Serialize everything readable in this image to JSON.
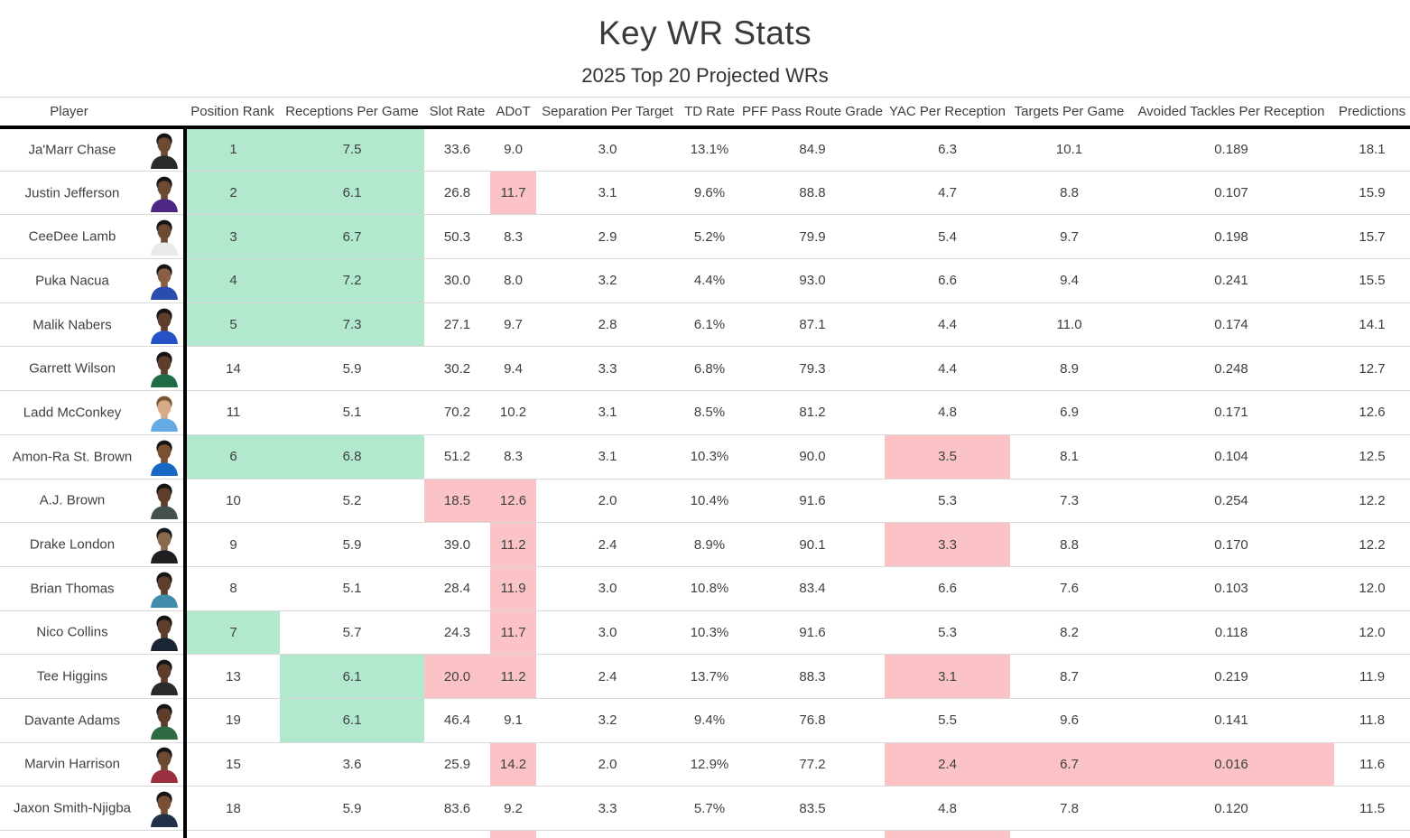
{
  "chart_data": {
    "type": "table",
    "title": "Key WR Stats",
    "subtitle": "2025 Top 20 Projected WRs",
    "highlight_colors": {
      "green": "#b1e8ce",
      "red": "#fbc3c6"
    },
    "legend_note": "green = strength highlight, red = weakness highlight",
    "columns": [
      {
        "key": "player",
        "label": "Player"
      },
      {
        "key": "rank",
        "label": "Position Rank"
      },
      {
        "key": "rec",
        "label": "Receptions Per Game"
      },
      {
        "key": "slot",
        "label": "Slot Rate"
      },
      {
        "key": "adot",
        "label": "ADoT"
      },
      {
        "key": "sep",
        "label": "Separation Per Target"
      },
      {
        "key": "td",
        "label": "TD Rate"
      },
      {
        "key": "pff",
        "label": "PFF Pass Route Grade"
      },
      {
        "key": "yac",
        "label": "YAC Per Reception"
      },
      {
        "key": "tgt",
        "label": "Targets Per Game"
      },
      {
        "key": "avt",
        "label": "Avoided Tackles Per Reception"
      },
      {
        "key": "pred",
        "label": "Predictions"
      }
    ],
    "rows": [
      {
        "player": "Ja'Marr Chase",
        "avatar": {
          "skin": "#6f4a33",
          "hair": "#151515",
          "jersey": "#2a2a2a"
        },
        "values": {
          "rank": "1",
          "rec": "7.5",
          "slot": "33.6",
          "adot": "9.0",
          "sep": "3.0",
          "td": "13.1%",
          "pff": "84.9",
          "yac": "6.3",
          "tgt": "10.1",
          "avt": "0.189",
          "pred": "18.1"
        },
        "highlights": {
          "rank": "green",
          "rec": "green"
        }
      },
      {
        "player": "Justin Jefferson",
        "avatar": {
          "skin": "#6f4a33",
          "hair": "#151515",
          "jersey": "#4f2683"
        },
        "values": {
          "rank": "2",
          "rec": "6.1",
          "slot": "26.8",
          "adot": "11.7",
          "sep": "3.1",
          "td": "9.6%",
          "pff": "88.8",
          "yac": "4.7",
          "tgt": "8.8",
          "avt": "0.107",
          "pred": "15.9"
        },
        "highlights": {
          "rank": "green",
          "rec": "green",
          "adot": "red"
        }
      },
      {
        "player": "CeeDee Lamb",
        "avatar": {
          "skin": "#6f4a33",
          "hair": "#151515",
          "jersey": "#e9e9e9"
        },
        "values": {
          "rank": "3",
          "rec": "6.7",
          "slot": "50.3",
          "adot": "8.3",
          "sep": "2.9",
          "td": "5.2%",
          "pff": "79.9",
          "yac": "5.4",
          "tgt": "9.7",
          "avt": "0.198",
          "pred": "15.7"
        },
        "highlights": {
          "rank": "green",
          "rec": "green"
        }
      },
      {
        "player": "Puka Nacua",
        "avatar": {
          "skin": "#8a5f41",
          "hair": "#151515",
          "jersey": "#2a4cad"
        },
        "values": {
          "rank": "4",
          "rec": "7.2",
          "slot": "30.0",
          "adot": "8.0",
          "sep": "3.2",
          "td": "4.4%",
          "pff": "93.0",
          "yac": "6.6",
          "tgt": "9.4",
          "avt": "0.241",
          "pred": "15.5"
        },
        "highlights": {
          "rank": "green",
          "rec": "green"
        }
      },
      {
        "player": "Malik Nabers",
        "avatar": {
          "skin": "#5e3d2a",
          "hair": "#151515",
          "jersey": "#2553c7"
        },
        "values": {
          "rank": "5",
          "rec": "7.3",
          "slot": "27.1",
          "adot": "9.7",
          "sep": "2.8",
          "td": "6.1%",
          "pff": "87.1",
          "yac": "4.4",
          "tgt": "11.0",
          "avt": "0.174",
          "pred": "14.1"
        },
        "highlights": {
          "rank": "green",
          "rec": "green"
        }
      },
      {
        "player": "Garrett Wilson",
        "avatar": {
          "skin": "#5e3d2a",
          "hair": "#151515",
          "jersey": "#1e6b45"
        },
        "values": {
          "rank": "14",
          "rec": "5.9",
          "slot": "30.2",
          "adot": "9.4",
          "sep": "3.3",
          "td": "6.8%",
          "pff": "79.3",
          "yac": "4.4",
          "tgt": "8.9",
          "avt": "0.248",
          "pred": "12.7"
        },
        "highlights": {}
      },
      {
        "player": "Ladd McConkey",
        "avatar": {
          "skin": "#d9a886",
          "hair": "#7a5634",
          "jersey": "#66aae3"
        },
        "values": {
          "rank": "11",
          "rec": "5.1",
          "slot": "70.2",
          "adot": "10.2",
          "sep": "3.1",
          "td": "8.5%",
          "pff": "81.2",
          "yac": "4.8",
          "tgt": "6.9",
          "avt": "0.171",
          "pred": "12.6"
        },
        "highlights": {}
      },
      {
        "player": "Amon-Ra St. Brown",
        "avatar": {
          "skin": "#7a5033",
          "hair": "#151515",
          "jersey": "#1668c4"
        },
        "values": {
          "rank": "6",
          "rec": "6.8",
          "slot": "51.2",
          "adot": "8.3",
          "sep": "3.1",
          "td": "10.3%",
          "pff": "90.0",
          "yac": "3.5",
          "tgt": "8.1",
          "avt": "0.104",
          "pred": "12.5"
        },
        "highlights": {
          "rank": "green",
          "rec": "green",
          "yac": "red"
        }
      },
      {
        "player": "A.J. Brown",
        "avatar": {
          "skin": "#5e3d2a",
          "hair": "#151515",
          "jersey": "#44514c"
        },
        "values": {
          "rank": "10",
          "rec": "5.2",
          "slot": "18.5",
          "adot": "12.6",
          "sep": "2.0",
          "td": "10.4%",
          "pff": "91.6",
          "yac": "5.3",
          "tgt": "7.3",
          "avt": "0.254",
          "pred": "12.2"
        },
        "highlights": {
          "slot": "red",
          "adot": "red"
        }
      },
      {
        "player": "Drake London",
        "avatar": {
          "skin": "#8a6a4e",
          "hair": "#1a1a1a",
          "jersey": "#1f1f22"
        },
        "values": {
          "rank": "9",
          "rec": "5.9",
          "slot": "39.0",
          "adot": "11.2",
          "sep": "2.4",
          "td": "8.9%",
          "pff": "90.1",
          "yac": "3.3",
          "tgt": "8.8",
          "avt": "0.170",
          "pred": "12.2"
        },
        "highlights": {
          "adot": "red",
          "yac": "red"
        }
      },
      {
        "player": "Brian Thomas",
        "avatar": {
          "skin": "#5e3d2a",
          "hair": "#151515",
          "jersey": "#3f8cab"
        },
        "values": {
          "rank": "8",
          "rec": "5.1",
          "slot": "28.4",
          "adot": "11.9",
          "sep": "3.0",
          "td": "10.8%",
          "pff": "83.4",
          "yac": "6.6",
          "tgt": "7.6",
          "avt": "0.103",
          "pred": "12.0"
        },
        "highlights": {
          "adot": "red"
        }
      },
      {
        "player": "Nico Collins",
        "avatar": {
          "skin": "#5e3d2a",
          "hair": "#151515",
          "jersey": "#1a2533"
        },
        "values": {
          "rank": "7",
          "rec": "5.7",
          "slot": "24.3",
          "adot": "11.7",
          "sep": "3.0",
          "td": "10.3%",
          "pff": "91.6",
          "yac": "5.3",
          "tgt": "8.2",
          "avt": "0.118",
          "pred": "12.0"
        },
        "highlights": {
          "rank": "green",
          "adot": "red"
        }
      },
      {
        "player": "Tee Higgins",
        "avatar": {
          "skin": "#5e3d2a",
          "hair": "#151515",
          "jersey": "#2a2a2a"
        },
        "values": {
          "rank": "13",
          "rec": "6.1",
          "slot": "20.0",
          "adot": "11.2",
          "sep": "2.4",
          "td": "13.7%",
          "pff": "88.3",
          "yac": "3.1",
          "tgt": "8.7",
          "avt": "0.219",
          "pred": "11.9"
        },
        "highlights": {
          "rec": "green",
          "slot": "red",
          "adot": "red",
          "yac": "red"
        }
      },
      {
        "player": "Davante Adams",
        "avatar": {
          "skin": "#5e3d2a",
          "hair": "#151515",
          "jersey": "#2e6b43"
        },
        "values": {
          "rank": "19",
          "rec": "6.1",
          "slot": "46.4",
          "adot": "9.1",
          "sep": "3.2",
          "td": "9.4%",
          "pff": "76.8",
          "yac": "5.5",
          "tgt": "9.6",
          "avt": "0.141",
          "pred": "11.8"
        },
        "highlights": {
          "rec": "green"
        }
      },
      {
        "player": "Marvin Harrison",
        "avatar": {
          "skin": "#6f4a33",
          "hair": "#151515",
          "jersey": "#9c2f3f"
        },
        "values": {
          "rank": "15",
          "rec": "3.6",
          "slot": "25.9",
          "adot": "14.2",
          "sep": "2.0",
          "td": "12.9%",
          "pff": "77.2",
          "yac": "2.4",
          "tgt": "6.7",
          "avt": "0.016",
          "pred": "11.6"
        },
        "highlights": {
          "adot": "red",
          "yac": "red",
          "tgt": "red",
          "avt": "red"
        }
      },
      {
        "player": "Jaxon Smith-Njigba",
        "avatar": {
          "skin": "#7a5033",
          "hair": "#151515",
          "jersey": "#22304a"
        },
        "values": {
          "rank": "18",
          "rec": "5.9",
          "slot": "83.6",
          "adot": "9.2",
          "sep": "3.3",
          "td": "5.7%",
          "pff": "83.5",
          "yac": "4.8",
          "tgt": "7.8",
          "avt": "0.120",
          "pred": "11.5"
        },
        "highlights": {}
      },
      {
        "player": "",
        "avatar": null,
        "partial": true,
        "values": {},
        "highlights": {
          "adot": "red",
          "yac": "red"
        }
      }
    ]
  }
}
